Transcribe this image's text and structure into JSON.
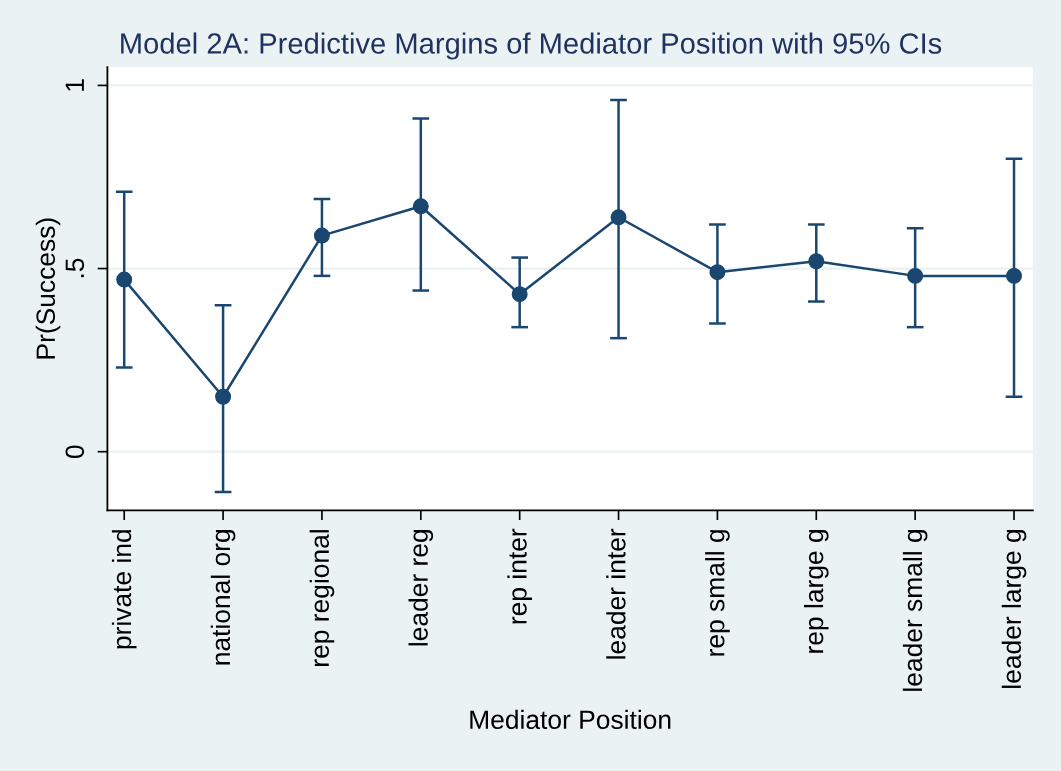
{
  "chart_data": {
    "type": "line",
    "title": "Model 2A: Predictive Margins of Mediator Position with 95% CIs",
    "xlabel": "Mediator Position",
    "ylabel": "Pr(Success)",
    "categories": [
      "private ind",
      "national org",
      "rep regional",
      "leader reg",
      "rep inter",
      "leader inter",
      "rep small g",
      "rep large g",
      "leader small g",
      "leader large g"
    ],
    "values": [
      0.47,
      0.15,
      0.59,
      0.67,
      0.43,
      0.64,
      0.49,
      0.52,
      0.48,
      0.48
    ],
    "errors": [
      [
        0.23,
        0.71
      ],
      [
        -0.11,
        0.4
      ],
      [
        0.48,
        0.69
      ],
      [
        0.44,
        0.91
      ],
      [
        0.34,
        0.53
      ],
      [
        0.31,
        0.96
      ],
      [
        0.35,
        0.62
      ],
      [
        0.41,
        0.62
      ],
      [
        0.34,
        0.61
      ],
      [
        0.15,
        0.8
      ]
    ],
    "color": "#1a476f",
    "marker": "circle",
    "line_style": "solid",
    "grid": "y",
    "ylim": [
      -0.16,
      1.05
    ],
    "yticks": [
      0,
      {
        "value": 0.5,
        "label": ".5"
      },
      1
    ]
  }
}
